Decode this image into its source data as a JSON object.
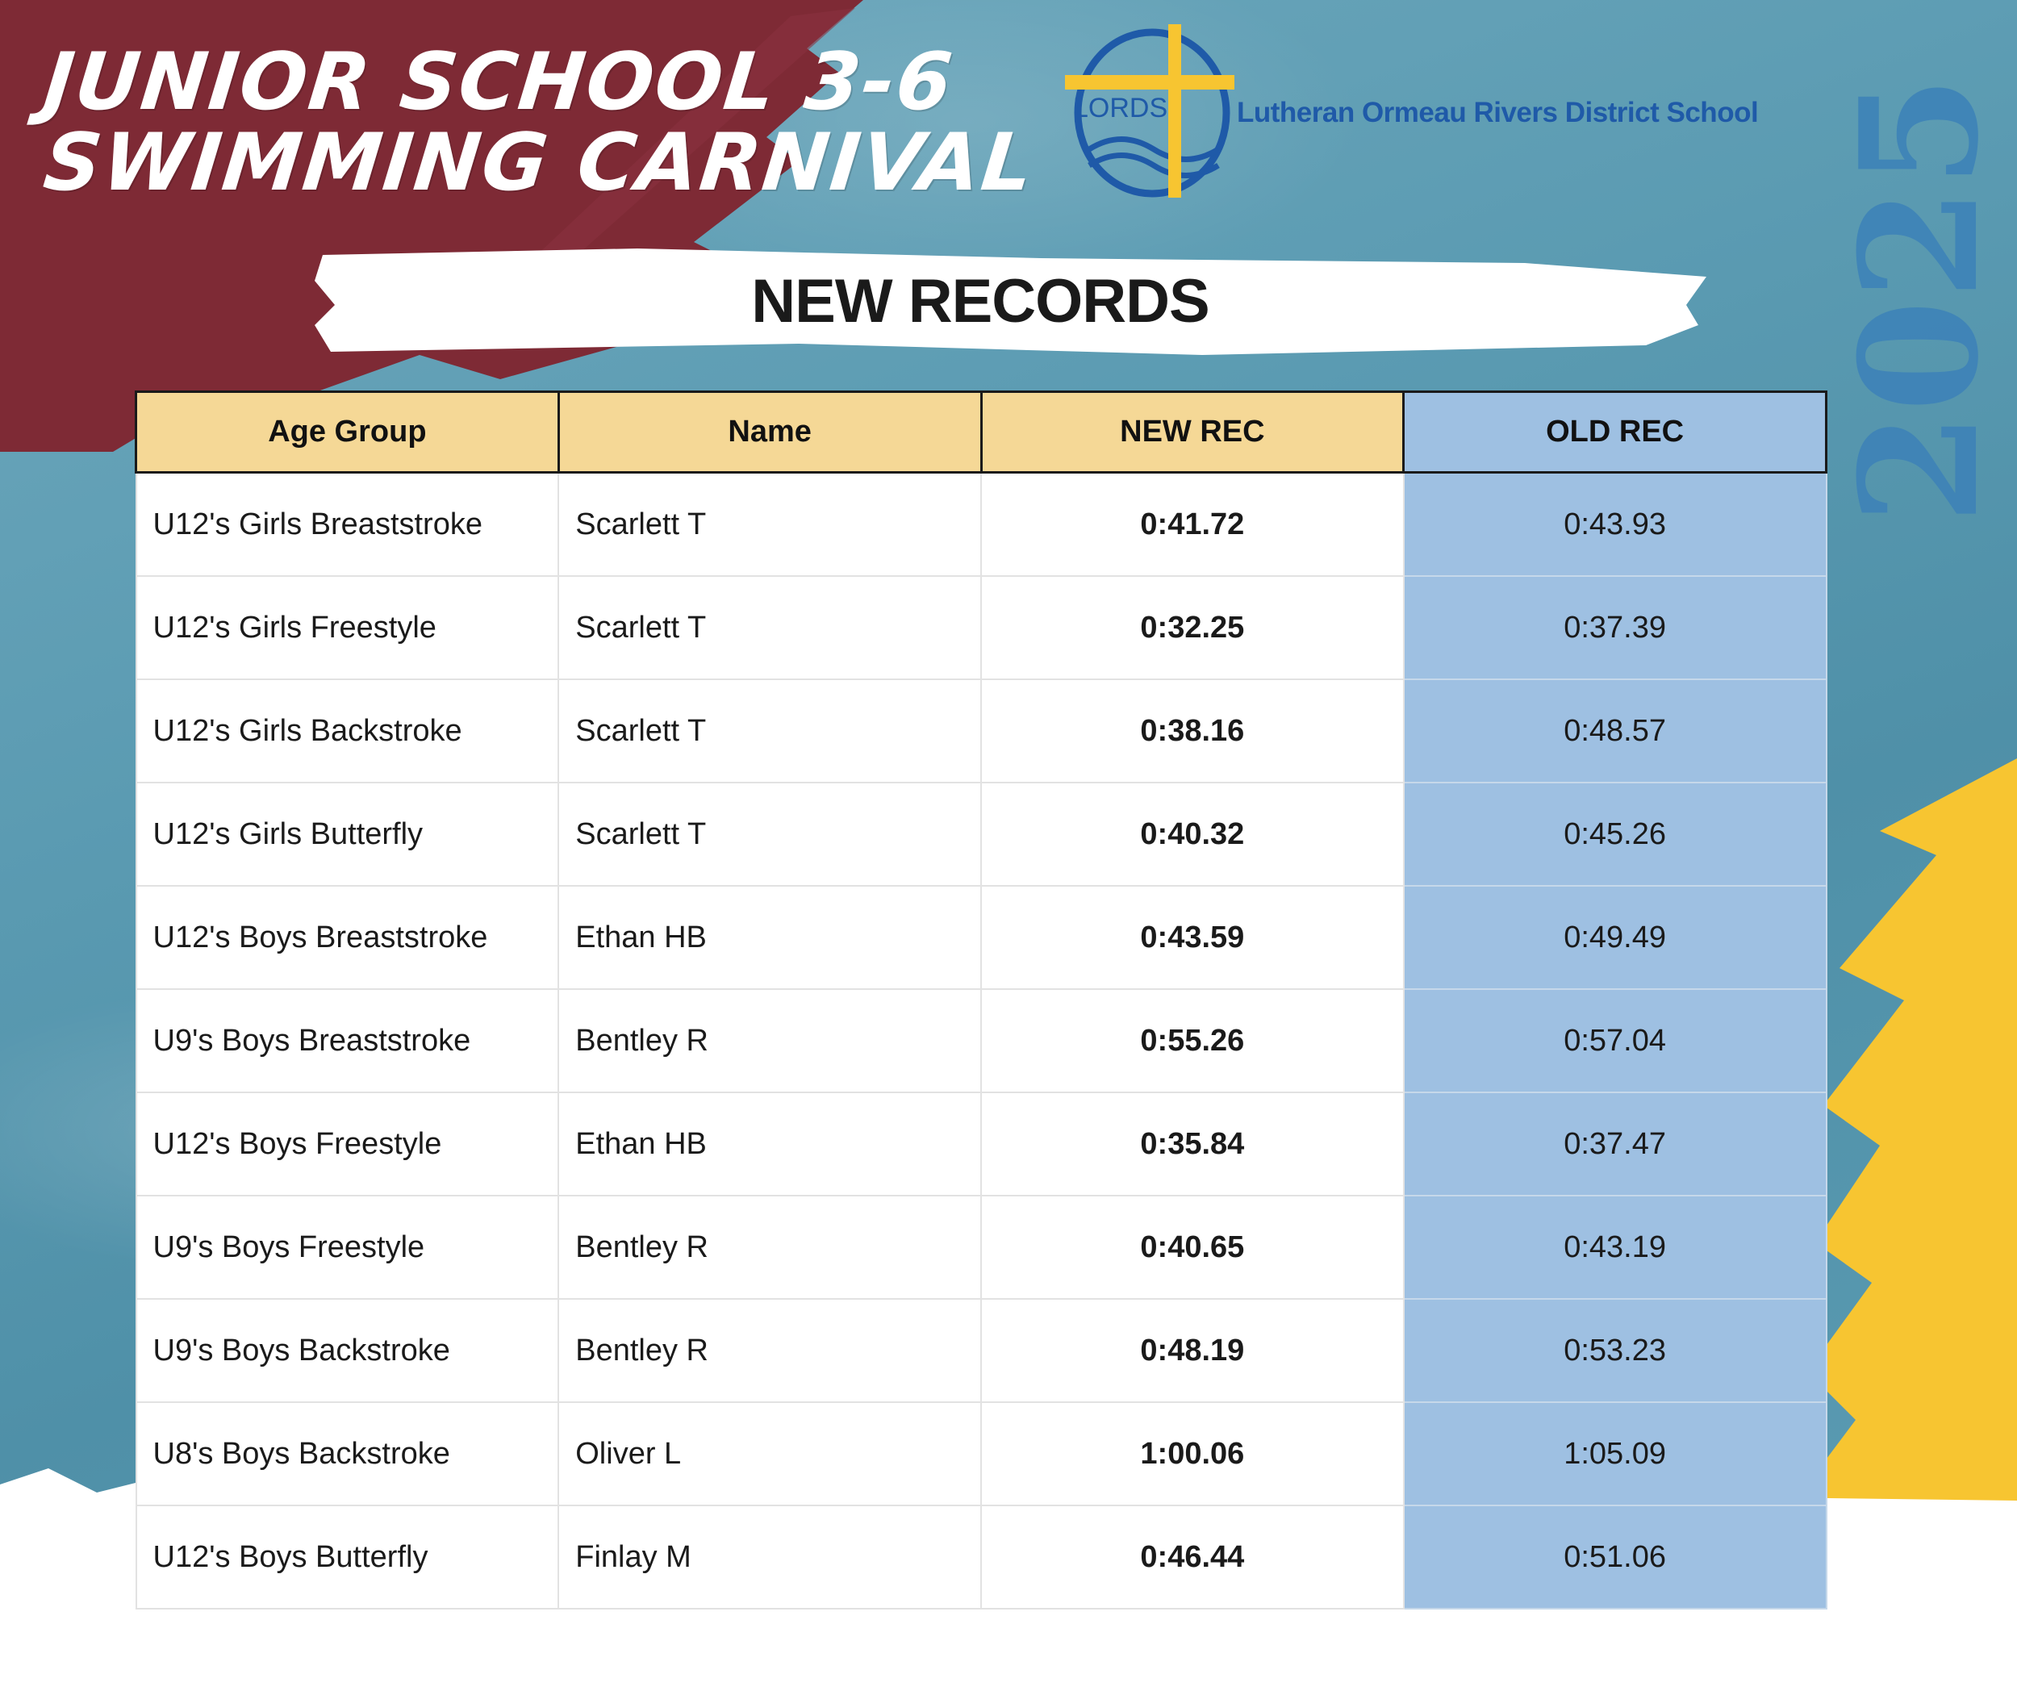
{
  "header": {
    "title_line1": "JUNIOR SCHOOL 3-6",
    "title_line2": "SWIMMING CARNIVAL",
    "school_logo_text": "LORDS",
    "school_name": "Lutheran Ormeau Rivers District School",
    "year": "2025"
  },
  "banner": "NEW RECORDS",
  "table": {
    "columns": [
      "Age Group",
      "Name",
      "NEW REC",
      "OLD REC"
    ],
    "rows": [
      [
        "U12's Girls Breaststroke",
        "Scarlett T",
        "0:41.72",
        "0:43.93"
      ],
      [
        "U12's Girls Freestyle",
        "Scarlett T",
        "0:32.25",
        "0:37.39"
      ],
      [
        "U12's Girls Backstroke",
        "Scarlett T",
        "0:38.16",
        "0:48.57"
      ],
      [
        "U12's Girls Butterfly",
        "Scarlett T",
        "0:40.32",
        "0:45.26"
      ],
      [
        "U12's Boys Breaststroke",
        "Ethan HB",
        "0:43.59",
        "0:49.49"
      ],
      [
        "U9's Boys Breaststroke",
        "Bentley R",
        "0:55.26",
        "0:57.04"
      ],
      [
        "U12's Boys Freestyle",
        "Ethan HB",
        "0:35.84",
        "0:37.47"
      ],
      [
        "U9's Boys Freestyle",
        "Bentley R",
        "0:40.65",
        "0:43.19"
      ],
      [
        "U9's Boys Backstroke",
        "Bentley R",
        "0:48.19",
        "0:53.23"
      ],
      [
        "U8's Boys Backstroke",
        "Oliver L",
        "1:00.06",
        "1:05.09"
      ],
      [
        "U12's Boys Butterfly",
        "Finlay M",
        "0:46.44",
        "0:51.06"
      ]
    ]
  },
  "colors": {
    "maroon": "#7e2a35",
    "yellow": "#f7c531",
    "header_gold": "#f5d896",
    "old_rec_blue": "#9ec0e2",
    "logo_blue": "#1f5aa8"
  }
}
